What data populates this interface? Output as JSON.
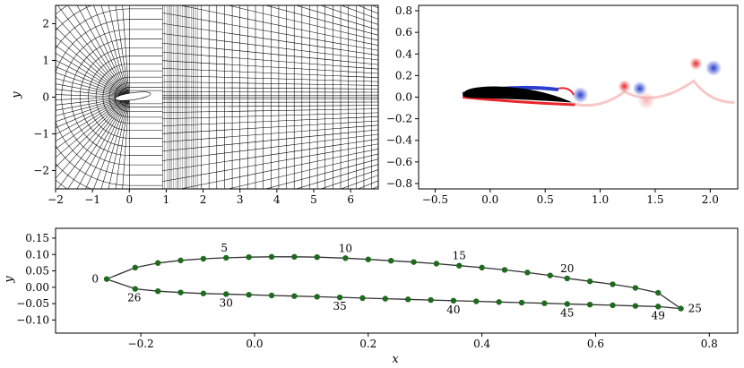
{
  "mesh_panel": {
    "ylabel": "y",
    "x_ticks": [
      -2,
      -1,
      0,
      1,
      2,
      3,
      4,
      5,
      6
    ],
    "y_ticks": [
      -2,
      -1,
      0,
      1,
      2
    ],
    "xlim": [
      -2,
      6.75
    ],
    "ylim": [
      -2.5,
      2.5
    ]
  },
  "vorticity_panel": {
    "x_ticks": [
      -0.5,
      0.0,
      0.5,
      1.0,
      1.5,
      2.0
    ],
    "y_ticks": [
      -0.8,
      -0.6,
      -0.4,
      -0.2,
      0.0,
      0.2,
      0.4,
      0.6,
      0.8
    ],
    "xlim": [
      -0.65,
      2.25
    ],
    "ylim": [
      -0.85,
      0.85
    ],
    "colors": {
      "positive": "#e8262b",
      "negative": "#2a3ecf",
      "body": "#000000"
    }
  },
  "chart_data": {
    "type": "line",
    "xlabel": "x",
    "ylabel": "y",
    "xlim": [
      -0.35,
      0.85
    ],
    "ylim": [
      -0.14,
      0.18
    ],
    "x_ticks": [
      -0.2,
      0.0,
      0.2,
      0.4,
      0.6,
      0.8
    ],
    "y_ticks": [
      -0.1,
      -0.05,
      0.0,
      0.05,
      0.1,
      0.15
    ],
    "grid": false,
    "line_color": "#333333",
    "marker_color": "#1e6b1e",
    "series": [
      {
        "upper_x": [
          -0.26,
          -0.21,
          -0.17,
          -0.13,
          -0.09,
          -0.05,
          -0.01,
          0.03,
          0.07,
          0.11,
          0.16,
          0.2,
          0.24,
          0.28,
          0.32,
          0.36,
          0.4,
          0.44,
          0.48,
          0.52,
          0.55,
          0.59,
          0.63,
          0.67,
          0.71,
          0.75
        ],
        "upper_y": [
          0.025,
          0.06,
          0.074,
          0.082,
          0.087,
          0.09,
          0.092,
          0.093,
          0.093,
          0.092,
          0.089,
          0.085,
          0.081,
          0.077,
          0.072,
          0.066,
          0.06,
          0.053,
          0.045,
          0.036,
          0.027,
          0.018,
          0.009,
          -0.002,
          -0.017,
          -0.065
        ],
        "lower_x": [
          -0.21,
          -0.17,
          -0.13,
          -0.09,
          -0.05,
          -0.01,
          0.03,
          0.07,
          0.11,
          0.15,
          0.19,
          0.23,
          0.27,
          0.31,
          0.35,
          0.39,
          0.43,
          0.47,
          0.51,
          0.55,
          0.59,
          0.63,
          0.67,
          0.71
        ],
        "lower_y": [
          -0.005,
          -0.012,
          -0.016,
          -0.019,
          -0.021,
          -0.023,
          -0.025,
          -0.027,
          -0.029,
          -0.031,
          -0.033,
          -0.035,
          -0.037,
          -0.039,
          -0.041,
          -0.043,
          -0.045,
          -0.047,
          -0.049,
          -0.051,
          -0.053,
          -0.055,
          -0.057,
          -0.059
        ]
      }
    ],
    "point_labels": [
      {
        "text": "0",
        "x": -0.26,
        "y": 0.025
      },
      {
        "text": "5",
        "x": -0.05,
        "y": 0.09
      },
      {
        "text": "10",
        "x": 0.16,
        "y": 0.089
      },
      {
        "text": "15",
        "x": 0.36,
        "y": 0.066
      },
      {
        "text": "20",
        "x": 0.55,
        "y": 0.027
      },
      {
        "text": "25",
        "x": 0.75,
        "y": -0.065
      },
      {
        "text": "26",
        "x": -0.21,
        "y": -0.005
      },
      {
        "text": "30",
        "x": -0.05,
        "y": -0.021
      },
      {
        "text": "35",
        "x": 0.15,
        "y": -0.031
      },
      {
        "text": "40",
        "x": 0.35,
        "y": -0.041
      },
      {
        "text": "45",
        "x": 0.55,
        "y": -0.051
      },
      {
        "text": "49",
        "x": 0.71,
        "y": -0.059
      }
    ]
  }
}
